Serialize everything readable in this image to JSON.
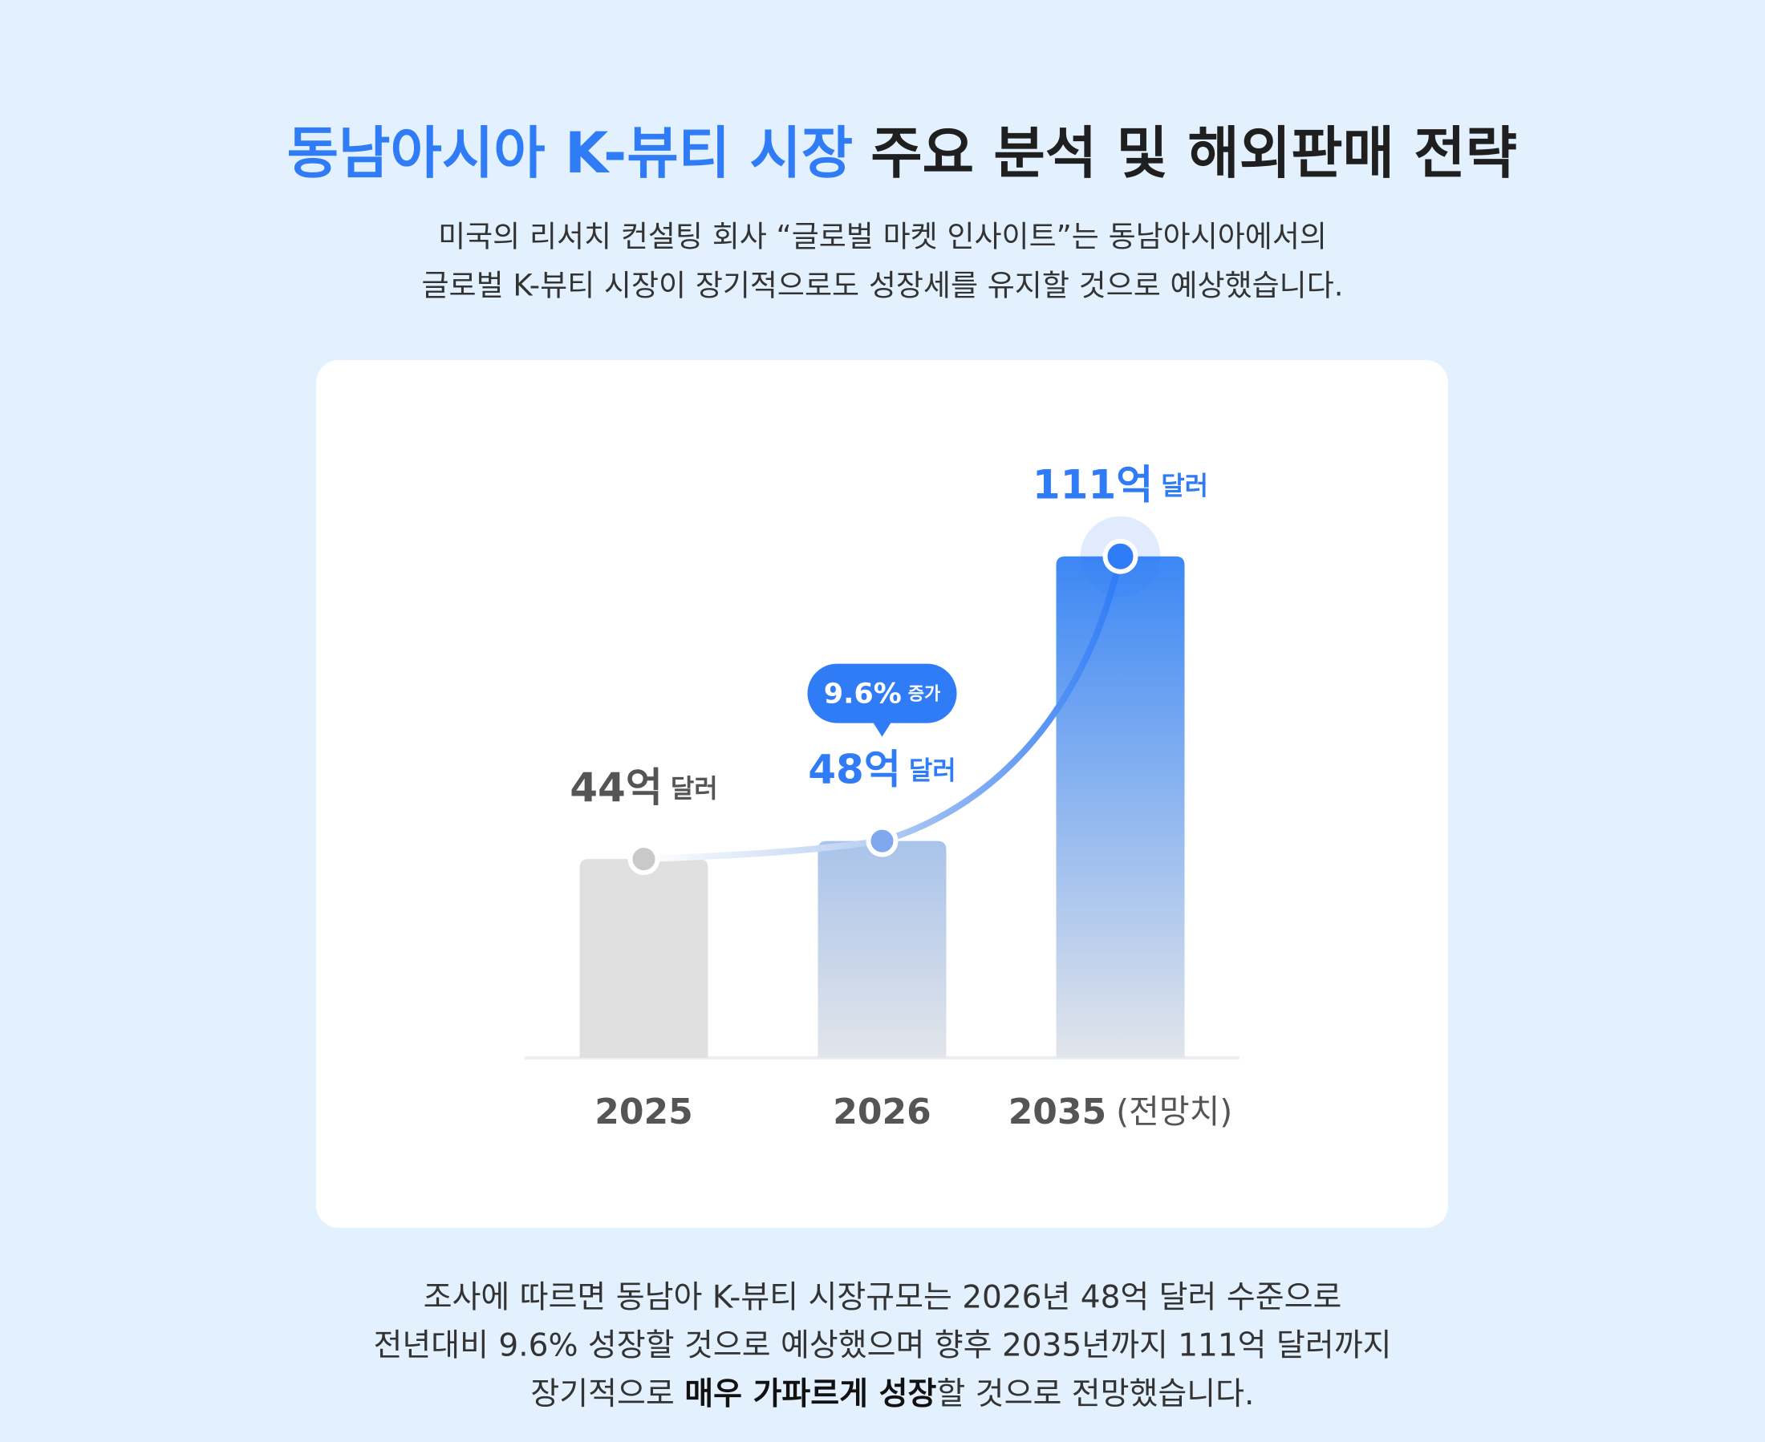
{
  "header": {
    "title_highlight": "동남아시아 K-뷰티 시장",
    "title": "주요 분석 및 해외판매 전략",
    "subtitle": [
      "미국의 리서치 컨설팅 회사 “글로벌 마켓 인사이트”는 동남아시아에서의",
      "글로벌 K-뷰티 시장이 장기적으로도 성장세를 유지할 것으로 예상했습니다."
    ]
  },
  "chart_data": {
    "type": "bar",
    "categories": [
      "2025",
      "2026",
      "2035"
    ],
    "category_suffix": [
      null,
      null,
      "(전망치)"
    ],
    "values": [
      44,
      48,
      111
    ],
    "value_labels": [
      "44억",
      "48억",
      "111억"
    ],
    "unit_label": "달러",
    "colors": [
      "#e0e0e0",
      "#a9c3ea",
      "#3c87f5"
    ],
    "label_colors": [
      "#555555",
      "#2f7cf6",
      "#2f7cf6"
    ],
    "annotation": {
      "label": "9.6%",
      "note": "증가"
    },
    "ylim": [
      0,
      120
    ]
  },
  "footer": {
    "lines": [
      "조사에 따르면 동남아 K-뷰티 시장규모는 2026년 48억 달러 수준으로",
      "전년대비 9.6% 성장할 것으로 예상했으며 향후 2035년까지 111억 달러까지"
    ],
    "last_line": [
      "장기적으로 ",
      "매우 가파르게 성장",
      "할 것으로 전망했습니다."
    ]
  }
}
